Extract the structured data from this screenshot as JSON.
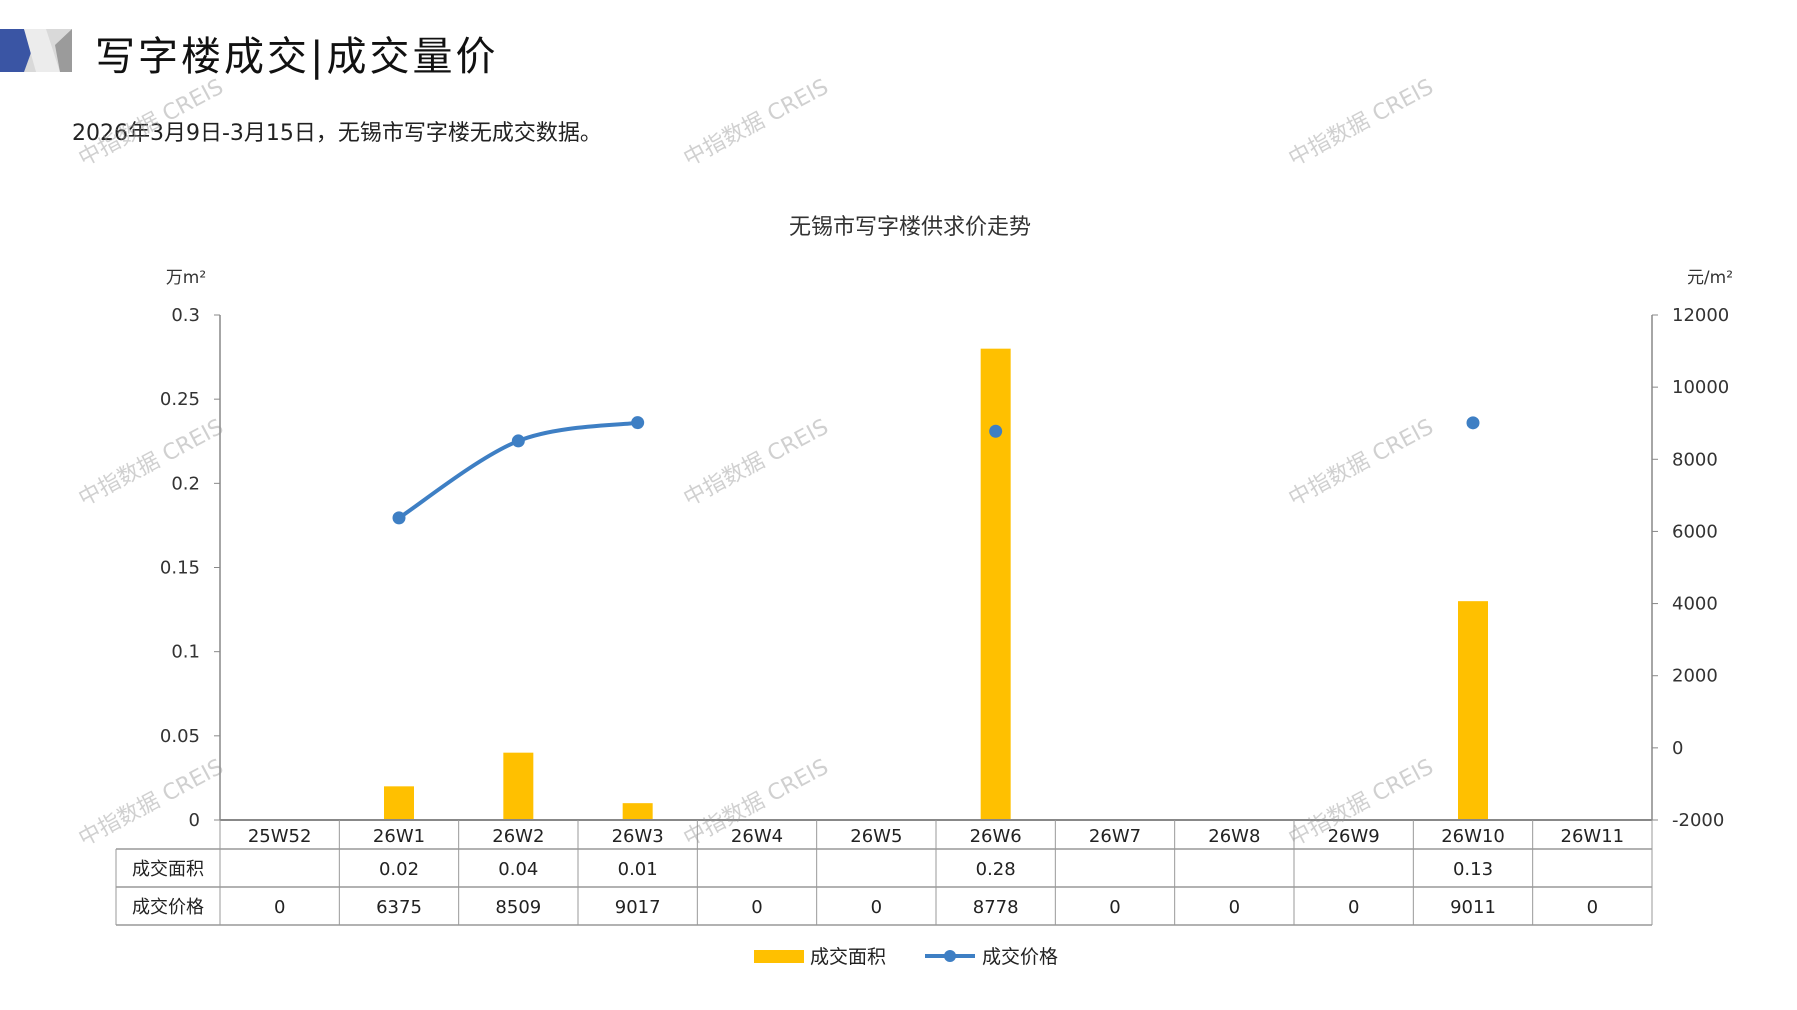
{
  "header": {
    "title": "写字楼成交|成交量价",
    "subtitle": "2026年3月9日-3月15日，无锡市写字楼无成交数据。"
  },
  "watermark": "中指数据 CREIS",
  "chart_data": {
    "type": "bar+line",
    "title": "无锡市写字楼供求价走势",
    "ylabel_left": "万m²",
    "ylabel_right": "元/m²",
    "ylim_left": [
      0,
      0.3
    ],
    "yticks_left": [
      "0",
      "0.05",
      "0.1",
      "0.15",
      "0.2",
      "0.25",
      "0.3"
    ],
    "ylim_right": [
      -2000,
      12000
    ],
    "yticks_right": [
      "-2000",
      "0",
      "2000",
      "4000",
      "6000",
      "8000",
      "10000",
      "12000"
    ],
    "categories": [
      "25W52",
      "26W1",
      "26W2",
      "26W3",
      "26W4",
      "26W5",
      "26W6",
      "26W7",
      "26W8",
      "26W9",
      "26W10",
      "26W11"
    ],
    "series": [
      {
        "name": "成交面积",
        "type": "bar",
        "axis": "left",
        "color": "#FFC000",
        "values": [
          null,
          0.02,
          0.04,
          0.01,
          null,
          null,
          0.28,
          null,
          null,
          null,
          0.13,
          null
        ],
        "table_labels": [
          "",
          "0.02",
          "0.04",
          "0.01",
          "",
          "",
          "0.28",
          "",
          "",
          "",
          "0.13",
          ""
        ]
      },
      {
        "name": "成交价格",
        "type": "line",
        "axis": "right",
        "color": "#3E7FC4",
        "values": [
          0,
          6375,
          8509,
          9017,
          0,
          0,
          8778,
          0,
          0,
          0,
          9011,
          0
        ],
        "table_labels": [
          "0",
          "6375",
          "8509",
          "9017",
          "0",
          "0",
          "8778",
          "0",
          "0",
          "0",
          "9011",
          "0"
        ]
      }
    ],
    "legend": "bottom",
    "data_table": true,
    "grid": false
  }
}
